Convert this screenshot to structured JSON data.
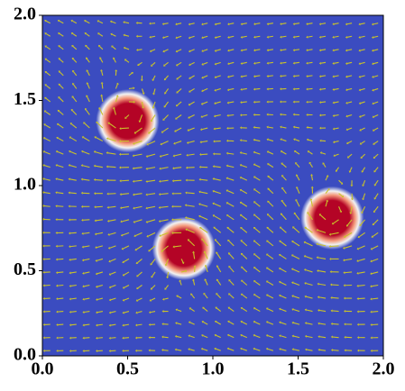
{
  "chart_data": {
    "type": "field",
    "x": [
      0.5,
      0.83,
      1.7
    ],
    "values": [
      1.38,
      0.63,
      0.81
    ],
    "radius": 0.12,
    "xlim": [
      0,
      2
    ],
    "ylim": [
      0,
      2
    ],
    "xticks": [
      {
        "value": 0,
        "label": "0.0"
      },
      0.5,
      {
        "value": 1,
        "label": "1.0"
      },
      1.5,
      {
        "value": 2,
        "label": "2.0"
      }
    ],
    "yticks": [
      {
        "value": 0,
        "label": "0.0"
      },
      0.5,
      {
        "value": 1,
        "label": "1.0"
      },
      1.5,
      {
        "value": 2,
        "label": "2.0"
      }
    ],
    "background_color": "#3b4cc0",
    "peak_color": "#b40426",
    "arrow_color": "#c9c22a"
  }
}
